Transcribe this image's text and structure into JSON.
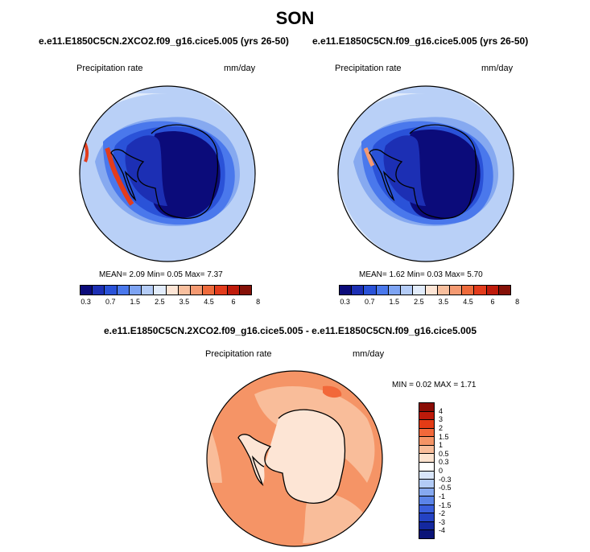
{
  "season": "SON",
  "panels": [
    {
      "case": "e.e11.E1850C5CN.2XCO2.f09_g16.cice5.005 (yrs 26-50)",
      "variable": "Precipitation rate",
      "units": "mm/day",
      "stats": "MEAN=   2.09  Min=   0.05  Max=   7.37"
    },
    {
      "case": "e.e11.E1850C5CN.f09_g16.cice5.005 (yrs 26-50)",
      "variable": "Precipitation rate",
      "units": "mm/day",
      "stats": "MEAN=   1.62  Min=   0.03  Max=   5.70"
    }
  ],
  "top_colorbar": {
    "colors": [
      "#0b0b7a",
      "#1c2fb4",
      "#2a52d8",
      "#4a78ec",
      "#7ea4f3",
      "#b4ccf7",
      "#e2ecfb",
      "#fde5d5",
      "#f8bf9e",
      "#f49a72",
      "#ee6b3c",
      "#e33c1c",
      "#bf1b0b",
      "#851108"
    ],
    "ticks": [
      "0.3",
      "0.7",
      "1.5",
      "2.5",
      "3.5",
      "4.5",
      "6",
      "8"
    ]
  },
  "diff": {
    "title": "e.e11.E1850C5CN.2XCO2.f09_g16.cice5.005 - e.e11.E1850C5CN.f09_g16.cice5.005",
    "variable": "Precipitation rate",
    "units": "mm/day",
    "stats": "MIN =   0.02 MAX =   1.71"
  },
  "diff_colorbar": {
    "colors": [
      "#8a0d05",
      "#bd1a0a",
      "#e33b15",
      "#f2683a",
      "#f59466",
      "#f9bd9a",
      "#fde3cf",
      "#ffffff",
      "#d9e6fb",
      "#b2cbf6",
      "#86a9f0",
      "#5b84e8",
      "#3a5fdc",
      "#2443c3",
      "#14289f",
      "#0a1478"
    ],
    "ticks": [
      "4",
      "3",
      "2",
      "1.5",
      "1",
      "0.5",
      "0.3",
      "0",
      "-0.3",
      "-0.5",
      "-1",
      "-1.5",
      "-2",
      "-3",
      "-4"
    ]
  },
  "map_colors": {
    "ocean_light": "#b9d0f7",
    "ocean_mid": "#86a9f0",
    "coast_blue": "#4a78ec",
    "ice_dark": "#0b0b7a",
    "ice_blue": "#1c2fb4",
    "peninsula_red": "#e33c1c",
    "diff_background": "#f59466",
    "diff_light": "#f9bd9a",
    "diff_continent": "#fde5d5"
  }
}
